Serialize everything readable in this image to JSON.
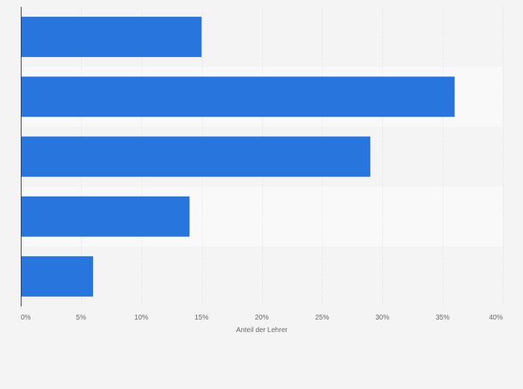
{
  "chart_data": {
    "type": "bar",
    "orientation": "horizontal",
    "categories": [
      "",
      "",
      "",
      "",
      ""
    ],
    "values": [
      15,
      36,
      29,
      14,
      6
    ],
    "x_ticks": [
      "0%",
      "5%",
      "10%",
      "15%",
      "20%",
      "25%",
      "30%",
      "35%",
      "40%"
    ],
    "xlim": [
      0,
      40
    ],
    "xlabel": "Anteil der Lehrer",
    "ylabel": "",
    "title": "",
    "grid": "vertical",
    "bar_color": "#2876dd",
    "band_colors": [
      "#f4f4f4",
      "#f9f9f9"
    ]
  }
}
